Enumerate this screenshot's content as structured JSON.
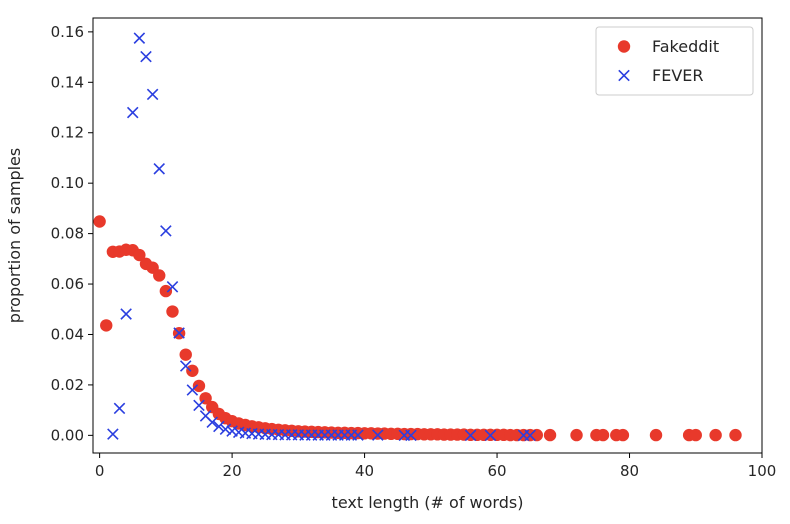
{
  "chart_data": {
    "type": "scatter",
    "xlabel": "text length (# of words)",
    "ylabel": "proportion of samples",
    "xlim": [
      -1,
      100
    ],
    "ylim": [
      -0.007,
      0.1655
    ],
    "xticks": [
      0,
      20,
      40,
      60,
      80,
      100
    ],
    "yticks": [
      0.0,
      0.02,
      0.04,
      0.06,
      0.08,
      0.1,
      0.12,
      0.14,
      0.16
    ],
    "xtick_labels": [
      "0",
      "20",
      "40",
      "60",
      "80",
      "100"
    ],
    "ytick_labels": [
      "0.00",
      "0.02",
      "0.04",
      "0.06",
      "0.08",
      "0.10",
      "0.12",
      "0.14",
      "0.16"
    ],
    "grid": false,
    "legend_position": "top-right",
    "series": [
      {
        "name": "Fakeddit",
        "marker": "circle",
        "color": "#e8392b",
        "points": [
          [
            0,
            0.0848
          ],
          [
            1,
            0.0436
          ],
          [
            2,
            0.0728
          ],
          [
            3,
            0.0729
          ],
          [
            4,
            0.0736
          ],
          [
            5,
            0.0734
          ],
          [
            6,
            0.0715
          ],
          [
            7,
            0.068
          ],
          [
            8,
            0.0665
          ],
          [
            9,
            0.0634
          ],
          [
            10,
            0.0572
          ],
          [
            11,
            0.0491
          ],
          [
            12,
            0.0405
          ],
          [
            13,
            0.032
          ],
          [
            14,
            0.0256
          ],
          [
            15,
            0.0196
          ],
          [
            16,
            0.0147
          ],
          [
            17,
            0.0112
          ],
          [
            18,
            0.0085
          ],
          [
            19,
            0.0068
          ],
          [
            20,
            0.0056
          ],
          [
            21,
            0.0047
          ],
          [
            22,
            0.0041
          ],
          [
            23,
            0.0036
          ],
          [
            24,
            0.0032
          ],
          [
            25,
            0.0028
          ],
          [
            26,
            0.0025
          ],
          [
            27,
            0.0022
          ],
          [
            28,
            0.002
          ],
          [
            29,
            0.0018
          ],
          [
            30,
            0.0016
          ],
          [
            31,
            0.0015
          ],
          [
            32,
            0.0014
          ],
          [
            33,
            0.0013
          ],
          [
            34,
            0.0012
          ],
          [
            35,
            0.0011
          ],
          [
            36,
            0.001
          ],
          [
            37,
            0.001
          ],
          [
            38,
            0.0009
          ],
          [
            39,
            0.0009
          ],
          [
            40,
            0.0008
          ],
          [
            41,
            0.0008
          ],
          [
            42,
            0.0007
          ],
          [
            43,
            0.0007
          ],
          [
            44,
            0.0006
          ],
          [
            45,
            0.0006
          ],
          [
            46,
            0.0005
          ],
          [
            47,
            0.0005
          ],
          [
            48,
            0.0005
          ],
          [
            49,
            0.0004
          ],
          [
            50,
            0.0004
          ],
          [
            51,
            0.0004
          ],
          [
            52,
            0.0003
          ],
          [
            53,
            0.0003
          ],
          [
            54,
            0.0003
          ],
          [
            55,
            0.0003
          ],
          [
            56,
            0.0002
          ],
          [
            57,
            0.0002
          ],
          [
            58,
            0.0002
          ],
          [
            59,
            0.0002
          ],
          [
            60,
            0.0002
          ],
          [
            61,
            0.0002
          ],
          [
            62,
            0.0001
          ],
          [
            63,
            0.0001
          ],
          [
            64,
            0.0001
          ],
          [
            65,
            0.0001
          ],
          [
            66,
            0.0001
          ],
          [
            68,
            0.0001
          ],
          [
            72,
            0.0001
          ],
          [
            75,
            0.0001
          ],
          [
            76,
            0.0001
          ],
          [
            78,
            0.0001
          ],
          [
            79,
            0.0001
          ],
          [
            84,
            0.0001
          ],
          [
            89,
            0.0001
          ],
          [
            90,
            0.0001
          ],
          [
            93,
            0.0001
          ],
          [
            96,
            0.0001
          ]
        ]
      },
      {
        "name": "FEVER",
        "marker": "x",
        "color": "#2b3fe0",
        "points": [
          [
            2,
            0.0005
          ],
          [
            3,
            0.0107
          ],
          [
            4,
            0.0481
          ],
          [
            5,
            0.128
          ],
          [
            6,
            0.1575
          ],
          [
            7,
            0.1502
          ],
          [
            8,
            0.1352
          ],
          [
            9,
            0.1057
          ],
          [
            10,
            0.0811
          ],
          [
            11,
            0.0589
          ],
          [
            12,
            0.0406
          ],
          [
            13,
            0.0275
          ],
          [
            14,
            0.018
          ],
          [
            15,
            0.0119
          ],
          [
            16,
            0.0077
          ],
          [
            17,
            0.0052
          ],
          [
            18,
            0.0035
          ],
          [
            19,
            0.0024
          ],
          [
            20,
            0.0017
          ],
          [
            21,
            0.0012
          ],
          [
            22,
            0.0009
          ],
          [
            23,
            0.0007
          ],
          [
            24,
            0.0005
          ],
          [
            25,
            0.0004
          ],
          [
            26,
            0.0003
          ],
          [
            27,
            0.0003
          ],
          [
            28,
            0.0002
          ],
          [
            29,
            0.0002
          ],
          [
            30,
            0.0002
          ],
          [
            31,
            0.0001
          ],
          [
            32,
            0.0001
          ],
          [
            33,
            0.0001
          ],
          [
            34,
            0.0001
          ],
          [
            35,
            0.0001
          ],
          [
            36,
            0.0001
          ],
          [
            37,
            0.0001
          ],
          [
            38,
            0.0001
          ],
          [
            39,
            0.0001
          ],
          [
            42,
            0.0001
          ],
          [
            46,
            0.0
          ],
          [
            47,
            0.0
          ],
          [
            56,
            0.0
          ],
          [
            59,
            0.0
          ],
          [
            64,
            0.0
          ],
          [
            65,
            0.0
          ]
        ]
      }
    ]
  }
}
